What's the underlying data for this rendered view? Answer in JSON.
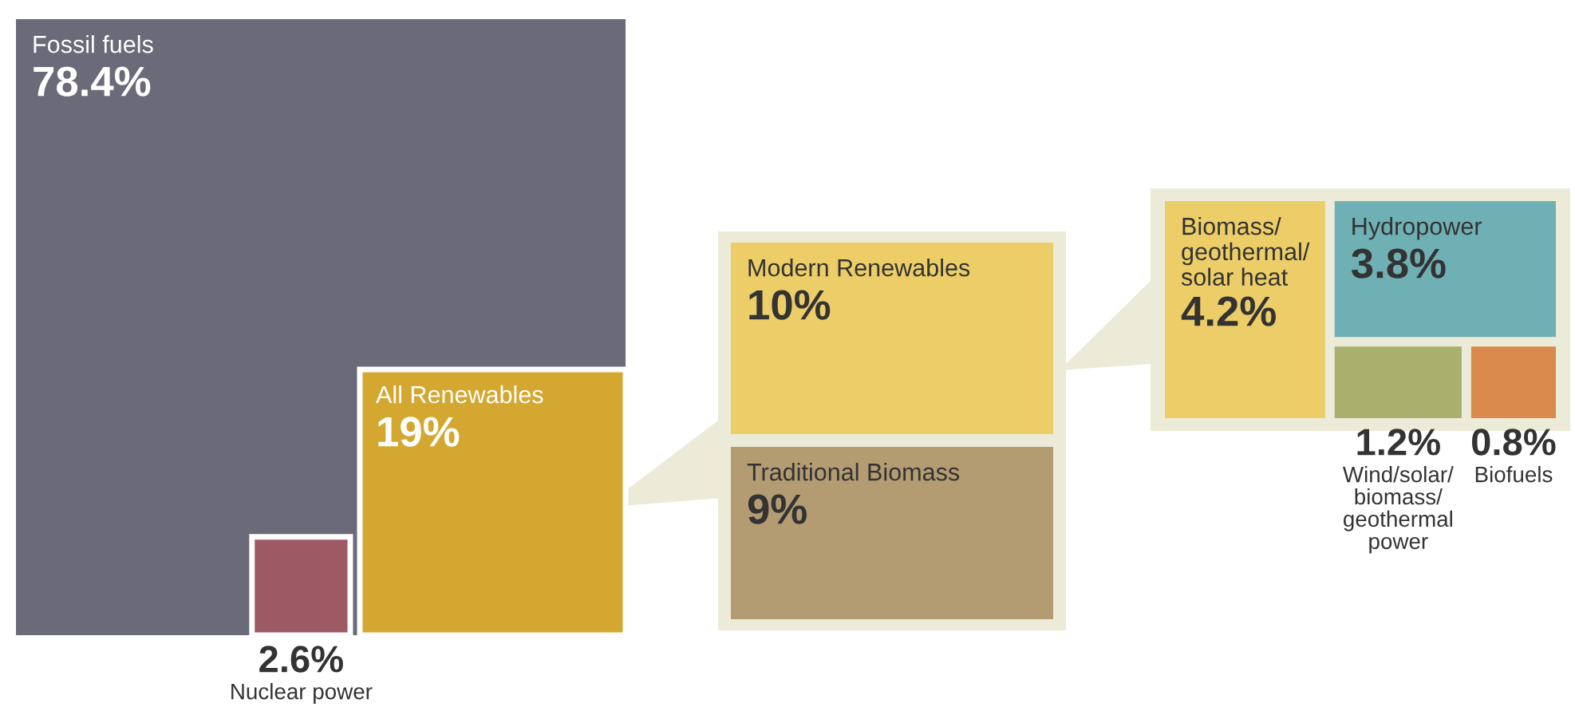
{
  "chart_data": [
    {
      "type": "other",
      "categories": [
        "Fossil fuels",
        "All Renewables",
        "Nuclear power"
      ],
      "values": [
        78.4,
        19,
        2.6
      ],
      "colors": [
        "#6b6a78",
        "#d4a830",
        "#9e5a64"
      ],
      "value_labels": [
        "78.4%",
        "19%",
        "2.6%"
      ]
    },
    {
      "type": "other",
      "categories": [
        "Modern Renewables",
        "Traditional Biomass"
      ],
      "values": [
        10,
        9
      ],
      "colors": [
        "#eccd68",
        "#b39b72"
      ],
      "value_labels": [
        "10%",
        "9%"
      ]
    },
    {
      "type": "other",
      "categories": [
        "Biomass/\ngeothermal/\nsolar heat",
        "Hydropower",
        "Wind/solar/\nbiomass/\ngeothermal\npower",
        "Biofuels"
      ],
      "values": [
        4.2,
        3.8,
        1.2,
        0.8
      ],
      "colors": [
        "#eccd68",
        "#6fb0b5",
        "#a9b06e",
        "#d98a4c"
      ],
      "value_labels": [
        "4.2%",
        "3.8%",
        "1.2%",
        "0.8%"
      ]
    }
  ]
}
